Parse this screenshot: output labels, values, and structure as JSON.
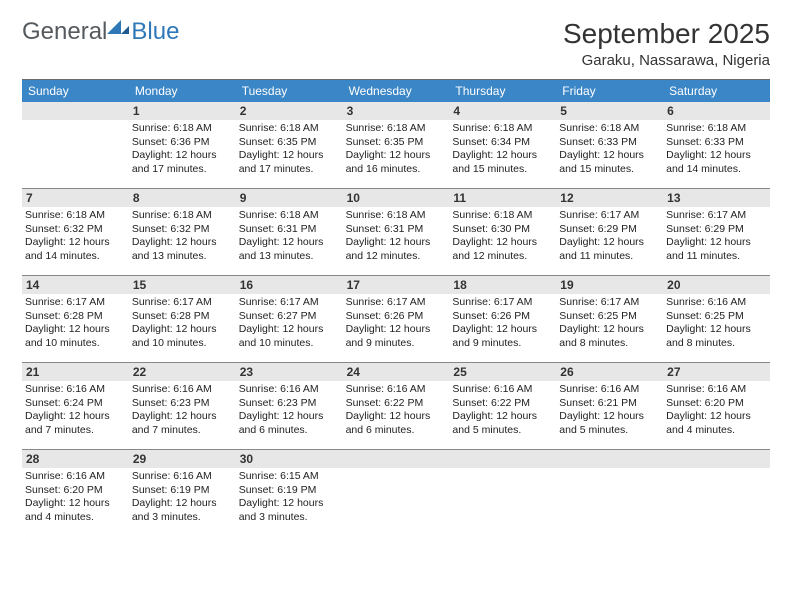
{
  "logo": {
    "general": "General",
    "blue": "Blue"
  },
  "title": "September 2025",
  "location": "Garaku, Nassarawa, Nigeria",
  "colors": {
    "header_bg": "#3b86c7",
    "header_text": "#ffffff",
    "daynum_bg": "#e7e7e7",
    "border": "#888888",
    "text": "#222222",
    "logo_gray": "#555a5f",
    "logo_blue": "#2f78b8",
    "page_bg": "#ffffff"
  },
  "dow": [
    "Sunday",
    "Monday",
    "Tuesday",
    "Wednesday",
    "Thursday",
    "Friday",
    "Saturday"
  ],
  "weeks": [
    [
      {
        "n": "",
        "sunrise": "",
        "sunset": "",
        "daylight": ""
      },
      {
        "n": "1",
        "sunrise": "Sunrise: 6:18 AM",
        "sunset": "Sunset: 6:36 PM",
        "daylight": "Daylight: 12 hours and 17 minutes."
      },
      {
        "n": "2",
        "sunrise": "Sunrise: 6:18 AM",
        "sunset": "Sunset: 6:35 PM",
        "daylight": "Daylight: 12 hours and 17 minutes."
      },
      {
        "n": "3",
        "sunrise": "Sunrise: 6:18 AM",
        "sunset": "Sunset: 6:35 PM",
        "daylight": "Daylight: 12 hours and 16 minutes."
      },
      {
        "n": "4",
        "sunrise": "Sunrise: 6:18 AM",
        "sunset": "Sunset: 6:34 PM",
        "daylight": "Daylight: 12 hours and 15 minutes."
      },
      {
        "n": "5",
        "sunrise": "Sunrise: 6:18 AM",
        "sunset": "Sunset: 6:33 PM",
        "daylight": "Daylight: 12 hours and 15 minutes."
      },
      {
        "n": "6",
        "sunrise": "Sunrise: 6:18 AM",
        "sunset": "Sunset: 6:33 PM",
        "daylight": "Daylight: 12 hours and 14 minutes."
      }
    ],
    [
      {
        "n": "7",
        "sunrise": "Sunrise: 6:18 AM",
        "sunset": "Sunset: 6:32 PM",
        "daylight": "Daylight: 12 hours and 14 minutes."
      },
      {
        "n": "8",
        "sunrise": "Sunrise: 6:18 AM",
        "sunset": "Sunset: 6:32 PM",
        "daylight": "Daylight: 12 hours and 13 minutes."
      },
      {
        "n": "9",
        "sunrise": "Sunrise: 6:18 AM",
        "sunset": "Sunset: 6:31 PM",
        "daylight": "Daylight: 12 hours and 13 minutes."
      },
      {
        "n": "10",
        "sunrise": "Sunrise: 6:18 AM",
        "sunset": "Sunset: 6:31 PM",
        "daylight": "Daylight: 12 hours and 12 minutes."
      },
      {
        "n": "11",
        "sunrise": "Sunrise: 6:18 AM",
        "sunset": "Sunset: 6:30 PM",
        "daylight": "Daylight: 12 hours and 12 minutes."
      },
      {
        "n": "12",
        "sunrise": "Sunrise: 6:17 AM",
        "sunset": "Sunset: 6:29 PM",
        "daylight": "Daylight: 12 hours and 11 minutes."
      },
      {
        "n": "13",
        "sunrise": "Sunrise: 6:17 AM",
        "sunset": "Sunset: 6:29 PM",
        "daylight": "Daylight: 12 hours and 11 minutes."
      }
    ],
    [
      {
        "n": "14",
        "sunrise": "Sunrise: 6:17 AM",
        "sunset": "Sunset: 6:28 PM",
        "daylight": "Daylight: 12 hours and 10 minutes."
      },
      {
        "n": "15",
        "sunrise": "Sunrise: 6:17 AM",
        "sunset": "Sunset: 6:28 PM",
        "daylight": "Daylight: 12 hours and 10 minutes."
      },
      {
        "n": "16",
        "sunrise": "Sunrise: 6:17 AM",
        "sunset": "Sunset: 6:27 PM",
        "daylight": "Daylight: 12 hours and 10 minutes."
      },
      {
        "n": "17",
        "sunrise": "Sunrise: 6:17 AM",
        "sunset": "Sunset: 6:26 PM",
        "daylight": "Daylight: 12 hours and 9 minutes."
      },
      {
        "n": "18",
        "sunrise": "Sunrise: 6:17 AM",
        "sunset": "Sunset: 6:26 PM",
        "daylight": "Daylight: 12 hours and 9 minutes."
      },
      {
        "n": "19",
        "sunrise": "Sunrise: 6:17 AM",
        "sunset": "Sunset: 6:25 PM",
        "daylight": "Daylight: 12 hours and 8 minutes."
      },
      {
        "n": "20",
        "sunrise": "Sunrise: 6:16 AM",
        "sunset": "Sunset: 6:25 PM",
        "daylight": "Daylight: 12 hours and 8 minutes."
      }
    ],
    [
      {
        "n": "21",
        "sunrise": "Sunrise: 6:16 AM",
        "sunset": "Sunset: 6:24 PM",
        "daylight": "Daylight: 12 hours and 7 minutes."
      },
      {
        "n": "22",
        "sunrise": "Sunrise: 6:16 AM",
        "sunset": "Sunset: 6:23 PM",
        "daylight": "Daylight: 12 hours and 7 minutes."
      },
      {
        "n": "23",
        "sunrise": "Sunrise: 6:16 AM",
        "sunset": "Sunset: 6:23 PM",
        "daylight": "Daylight: 12 hours and 6 minutes."
      },
      {
        "n": "24",
        "sunrise": "Sunrise: 6:16 AM",
        "sunset": "Sunset: 6:22 PM",
        "daylight": "Daylight: 12 hours and 6 minutes."
      },
      {
        "n": "25",
        "sunrise": "Sunrise: 6:16 AM",
        "sunset": "Sunset: 6:22 PM",
        "daylight": "Daylight: 12 hours and 5 minutes."
      },
      {
        "n": "26",
        "sunrise": "Sunrise: 6:16 AM",
        "sunset": "Sunset: 6:21 PM",
        "daylight": "Daylight: 12 hours and 5 minutes."
      },
      {
        "n": "27",
        "sunrise": "Sunrise: 6:16 AM",
        "sunset": "Sunset: 6:20 PM",
        "daylight": "Daylight: 12 hours and 4 minutes."
      }
    ],
    [
      {
        "n": "28",
        "sunrise": "Sunrise: 6:16 AM",
        "sunset": "Sunset: 6:20 PM",
        "daylight": "Daylight: 12 hours and 4 minutes."
      },
      {
        "n": "29",
        "sunrise": "Sunrise: 6:16 AM",
        "sunset": "Sunset: 6:19 PM",
        "daylight": "Daylight: 12 hours and 3 minutes."
      },
      {
        "n": "30",
        "sunrise": "Sunrise: 6:15 AM",
        "sunset": "Sunset: 6:19 PM",
        "daylight": "Daylight: 12 hours and 3 minutes."
      },
      {
        "n": "",
        "sunrise": "",
        "sunset": "",
        "daylight": ""
      },
      {
        "n": "",
        "sunrise": "",
        "sunset": "",
        "daylight": ""
      },
      {
        "n": "",
        "sunrise": "",
        "sunset": "",
        "daylight": ""
      },
      {
        "n": "",
        "sunrise": "",
        "sunset": "",
        "daylight": ""
      }
    ]
  ]
}
